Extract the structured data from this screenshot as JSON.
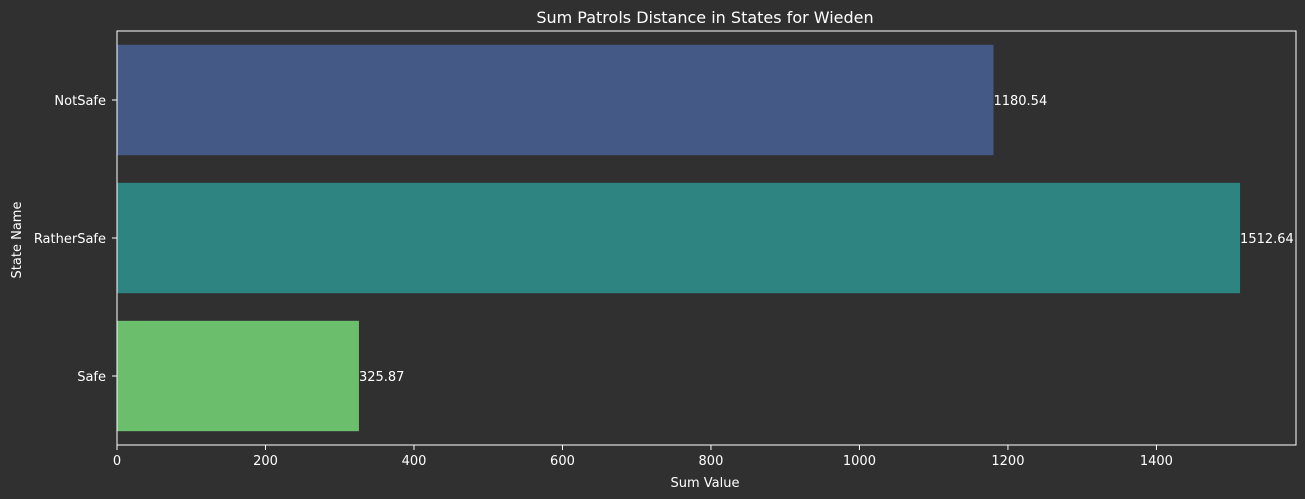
{
  "chart_data": {
    "type": "bar",
    "orientation": "horizontal",
    "title": "Sum Patrols Distance in States for Wieden",
    "xlabel": "Sum Value",
    "ylabel": "State Name",
    "categories": [
      "NotSafe",
      "RatherSafe",
      "Safe"
    ],
    "values": [
      1180.54,
      1512.64,
      325.87
    ],
    "value_labels": [
      "1180.54",
      "1512.64",
      "325.87"
    ],
    "colors": [
      "#455986",
      "#2e8480",
      "#6bbe6c"
    ],
    "xlim": [
      0,
      1588
    ],
    "xticks": [
      0,
      200,
      400,
      600,
      800,
      1000,
      1200,
      1400
    ],
    "grid": false,
    "legend": "none"
  },
  "colors": {
    "background": "#303030",
    "axis": "#ffffff",
    "text": "#ffffff"
  }
}
